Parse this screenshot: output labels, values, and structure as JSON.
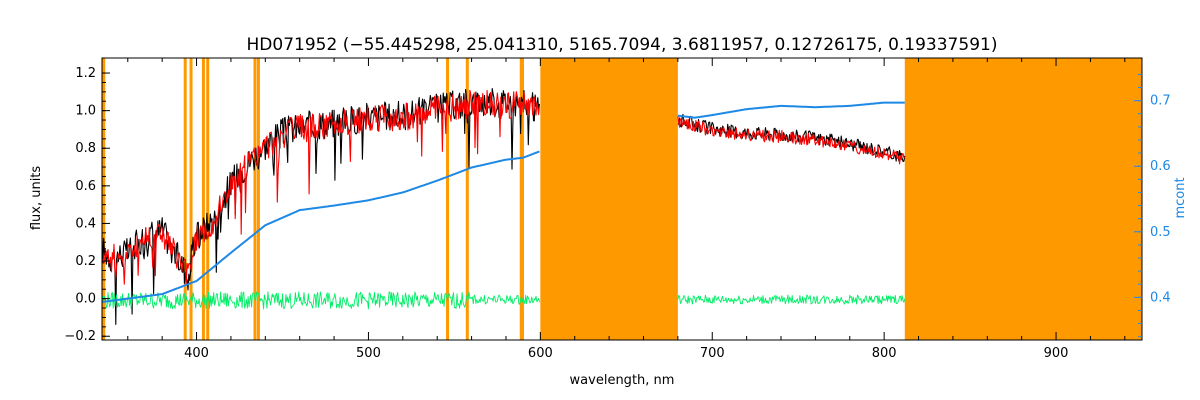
{
  "chart_data": {
    "type": "line",
    "title": "HD071952   (−55.445298, 25.041310, 5165.7094, 3.6811957, 0.12726175, 0.19337591)",
    "xlabel": "wavelength, nm",
    "ylabel": "flux, units",
    "y2label": "mcont",
    "xlim": [
      345,
      950
    ],
    "ylim": [
      -0.22,
      1.28
    ],
    "y2lim": [
      0.335,
      0.765
    ],
    "xticks": [
      400,
      500,
      600,
      700,
      800,
      900
    ],
    "yticks": [
      -0.2,
      0.0,
      0.2,
      0.4,
      0.6,
      0.8,
      1.0,
      1.2
    ],
    "y2ticks": [
      0.4,
      0.5,
      0.6,
      0.7
    ],
    "x_tick_labels": [
      "400",
      "500",
      "600",
      "700",
      "800",
      "900"
    ],
    "y_tick_labels": [
      "−0.2",
      "0.0",
      "0.2",
      "0.4",
      "0.6",
      "0.8",
      "1.0",
      "1.2"
    ],
    "y2_tick_labels": [
      "0.4",
      "0.5",
      "0.6",
      "0.7"
    ],
    "masked_bands": [
      [
        600,
        680
      ],
      [
        812,
        950
      ]
    ],
    "masked_lines": [
      346,
      393.4,
      396.8,
      404,
      406.5,
      434,
      436,
      546,
      557.5,
      588.9,
      589.6
    ],
    "series": [
      {
        "color": "#000000",
        "axis": "left",
        "x": [
          345,
          350,
          360,
          370,
          380,
          390,
          395,
          400,
          410,
          420,
          430,
          440,
          450,
          460,
          480,
          500,
          520,
          540,
          560,
          580,
          590,
          600,
          680,
          700,
          720,
          740,
          760,
          780,
          800,
          812
        ],
        "values": [
          0.28,
          0.24,
          0.26,
          0.35,
          0.38,
          0.22,
          0.14,
          0.35,
          0.44,
          0.63,
          0.74,
          0.83,
          0.9,
          0.93,
          0.95,
          0.98,
          0.99,
          1.03,
          1.06,
          1.06,
          1.05,
          1.02,
          0.96,
          0.91,
          0.89,
          0.88,
          0.86,
          0.83,
          0.79,
          0.76
        ]
      },
      {
        "color": "#ff0000",
        "axis": "left",
        "x": [
          345,
          350,
          360,
          370,
          380,
          390,
          395,
          400,
          410,
          420,
          430,
          440,
          450,
          460,
          480,
          500,
          520,
          540,
          560,
          580,
          590,
          600,
          680,
          700,
          720,
          740,
          760,
          780,
          800,
          812
        ],
        "values": [
          0.27,
          0.23,
          0.25,
          0.34,
          0.37,
          0.21,
          0.14,
          0.34,
          0.43,
          0.62,
          0.73,
          0.82,
          0.89,
          0.92,
          0.94,
          0.97,
          0.98,
          1.02,
          1.05,
          1.05,
          1.04,
          1.01,
          0.95,
          0.9,
          0.88,
          0.87,
          0.85,
          0.82,
          0.78,
          0.75
        ]
      },
      {
        "color": "#00ee66",
        "axis": "left",
        "x": [
          345,
          400,
          500,
          600,
          680,
          760,
          812
        ],
        "values": [
          0.0,
          0.0,
          0.0,
          0.0,
          0.0,
          0.0,
          0.0
        ]
      },
      {
        "color": "#1e88e5",
        "axis": "right",
        "x": [
          345,
          380,
          400,
          420,
          440,
          460,
          480,
          500,
          520,
          540,
          560,
          580,
          590,
          600,
          680,
          690,
          700,
          720,
          740,
          760,
          780,
          800,
          812
        ],
        "values": [
          0.393,
          0.405,
          0.425,
          0.468,
          0.51,
          0.533,
          0.54,
          0.548,
          0.56,
          0.578,
          0.598,
          0.61,
          0.613,
          0.623,
          0.677,
          0.674,
          0.678,
          0.687,
          0.692,
          0.69,
          0.692,
          0.697,
          0.697
        ]
      }
    ]
  }
}
